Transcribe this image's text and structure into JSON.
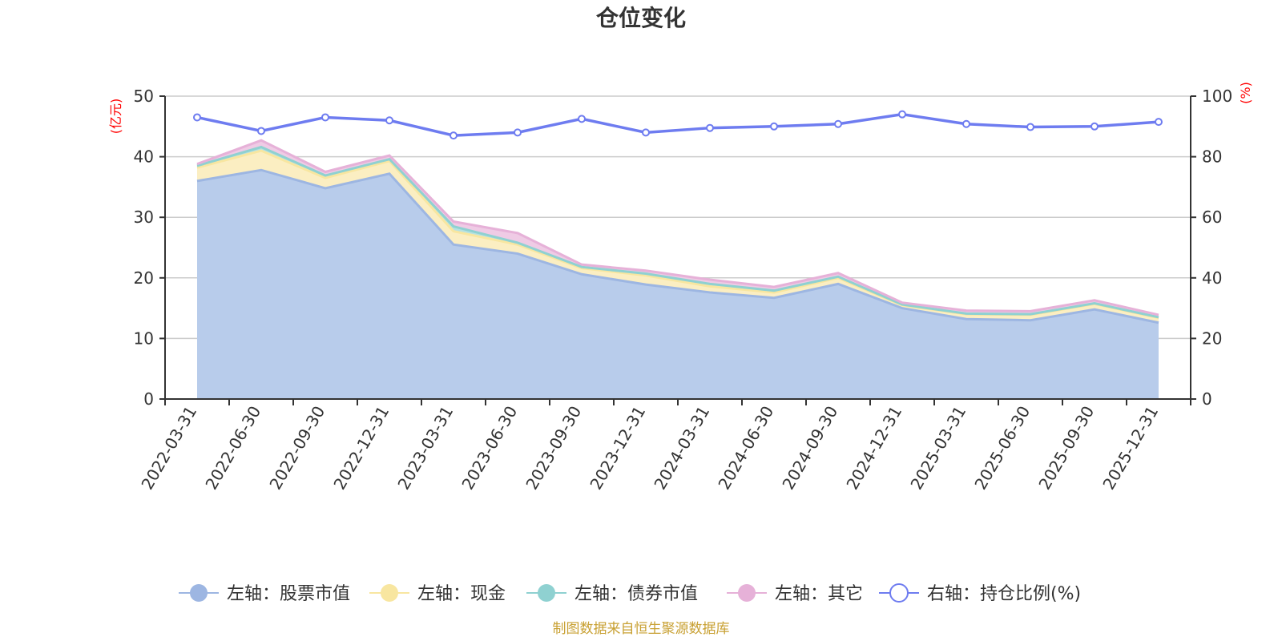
{
  "chart_data": {
    "type": "area",
    "title": "仓位变化",
    "categories": [
      "2022-03-31",
      "2022-06-30",
      "2022-09-30",
      "2022-12-31",
      "2023-03-31",
      "2023-06-30",
      "2023-09-30",
      "2023-12-31",
      "2024-03-31",
      "2024-06-30",
      "2024-09-30",
      "2024-12-31",
      "2025-03-31",
      "2025-06-30",
      "2025-09-30",
      "2025-12-31"
    ],
    "left_axis": {
      "label": "(亿元)",
      "min": 0,
      "max": 50,
      "ticks": [
        0,
        10,
        20,
        30,
        40,
        50
      ]
    },
    "right_axis": {
      "label": "(%)",
      "min": 0,
      "max": 100,
      "ticks": [
        0,
        20,
        40,
        60,
        80,
        100
      ]
    },
    "series": [
      {
        "name": "左轴：股票市值",
        "axis": "left",
        "stack": true,
        "color": "#9db6e2",
        "fill": "#b8cceb",
        "values": [
          36.0,
          37.8,
          34.8,
          37.2,
          25.5,
          24.0,
          20.6,
          18.9,
          17.6,
          16.7,
          19.0,
          15.0,
          13.2,
          13.0,
          14.8,
          12.6
        ]
      },
      {
        "name": "左轴：现金",
        "axis": "left",
        "stack": true,
        "color": "#f8e6a0",
        "fill": "#fbeec2",
        "values": [
          2.2,
          3.2,
          1.7,
          2.1,
          2.2,
          1.5,
          1.0,
          1.5,
          1.0,
          0.9,
          1.0,
          0.5,
          0.8,
          0.9,
          0.9,
          0.8
        ]
      },
      {
        "name": "左轴：债券市值",
        "axis": "left",
        "stack": true,
        "color": "#8fd1d1",
        "fill": "#b6e2e2",
        "values": [
          0.3,
          0.6,
          0.4,
          0.3,
          0.8,
          0.3,
          0.2,
          0.3,
          0.4,
          0.3,
          0.2,
          0.1,
          0.1,
          0.1,
          0.1,
          0.1
        ]
      },
      {
        "name": "左轴：其它",
        "axis": "left",
        "stack": true,
        "color": "#e6b1d8",
        "fill": "#efcbe5",
        "values": [
          0.3,
          1.1,
          0.6,
          0.6,
          0.8,
          1.6,
          0.4,
          0.5,
          0.7,
          0.6,
          0.6,
          0.3,
          0.5,
          0.5,
          0.5,
          0.4
        ]
      },
      {
        "name": "右轴：持仓比例(%)",
        "axis": "right",
        "stack": false,
        "color": "#6e7cf0",
        "fill": "none",
        "values": [
          93.0,
          88.5,
          93.0,
          92.0,
          87.0,
          88.0,
          92.5,
          88.0,
          89.5,
          90.0,
          90.8,
          94.0,
          90.8,
          89.8,
          90.0,
          91.5
        ]
      }
    ],
    "legend_position": "bottom",
    "grid": true
  },
  "footer": {
    "source": "制图数据来自恒生聚源数据库"
  }
}
